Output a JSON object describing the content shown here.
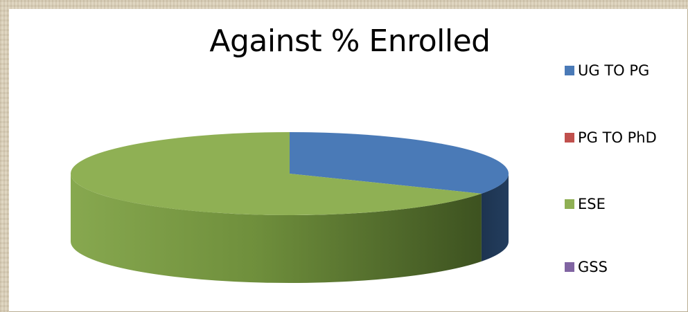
{
  "chart_data": {
    "type": "pie",
    "title": "Against % Enrolled",
    "categories": [
      "UG TO PG",
      "PG TO PhD",
      "ESE",
      "GSS"
    ],
    "values": [
      33,
      0,
      67,
      0
    ],
    "colors": [
      "#4a7ab7",
      "#c0504d",
      "#8fb054",
      "#8064a2"
    ],
    "legend_position": "right",
    "style": "3d"
  }
}
